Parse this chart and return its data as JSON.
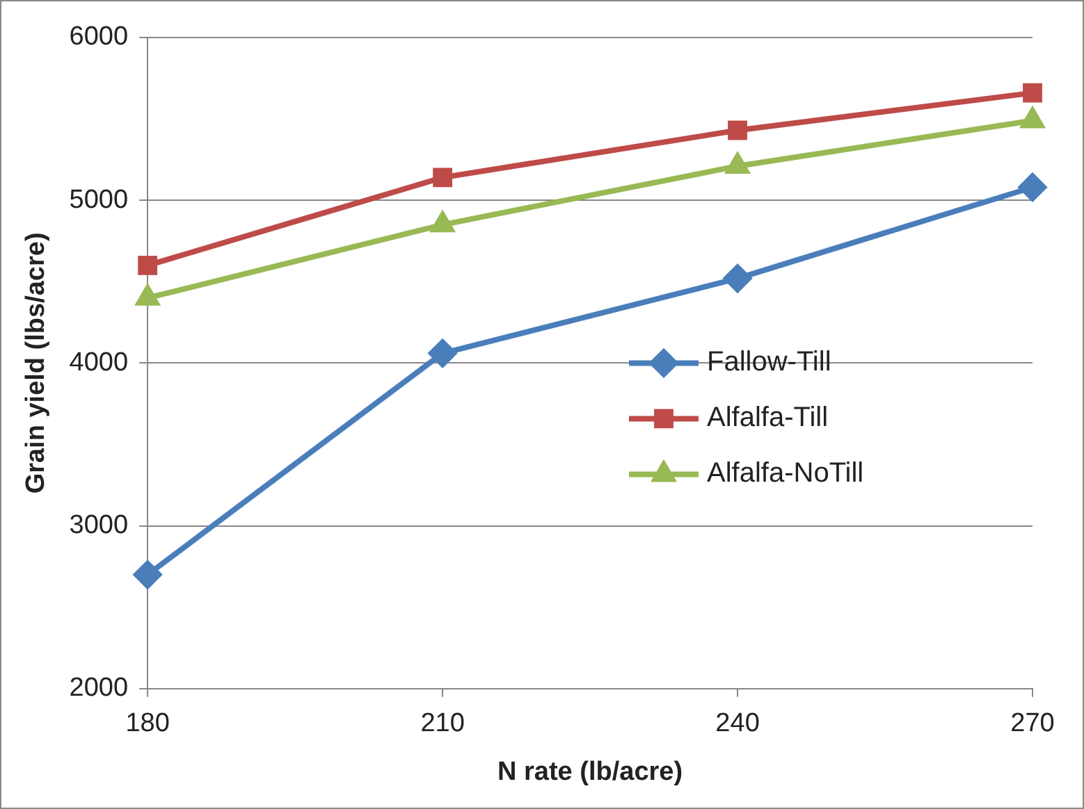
{
  "chart_data": {
    "type": "line",
    "xlabel": "N rate (lb/acre)",
    "ylabel": "Grain yield (lbs/acre)",
    "x": [
      180,
      210,
      240,
      270
    ],
    "xlim": [
      180,
      270
    ],
    "xticks": [
      180,
      210,
      240,
      270
    ],
    "ylim": [
      2000,
      6000
    ],
    "yticks": [
      2000,
      3000,
      4000,
      5000,
      6000
    ],
    "grid": "y",
    "legend": "right",
    "line_style": "solid",
    "series": [
      {
        "name": "Fallow-Till",
        "color": "#4a7ebb",
        "marker": "diamond",
        "values": [
          2700,
          4060,
          4520,
          5080
        ]
      },
      {
        "name": "Alfalfa-Till",
        "color": "#be4b48",
        "marker": "square",
        "values": [
          4600,
          5140,
          5430,
          5660
        ]
      },
      {
        "name": "Alfalfa-NoTill",
        "color": "#98b954",
        "marker": "triangle",
        "values": [
          4400,
          4850,
          5210,
          5490
        ]
      }
    ]
  }
}
